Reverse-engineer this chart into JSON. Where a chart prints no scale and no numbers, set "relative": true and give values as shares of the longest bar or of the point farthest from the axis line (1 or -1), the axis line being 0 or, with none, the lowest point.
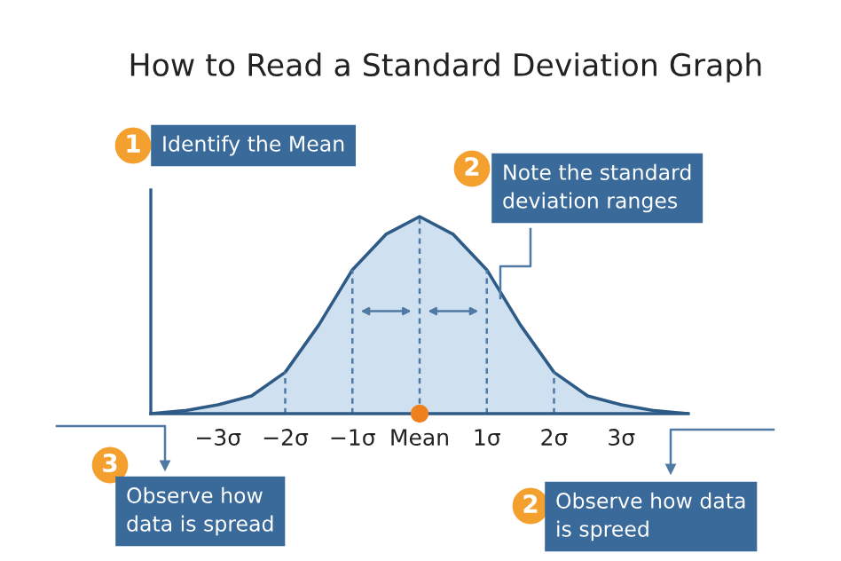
{
  "chart_data": {
    "type": "area",
    "title": "How to Read a Standard Deviation Graph",
    "relative": true,
    "x": [
      -4,
      -3.5,
      -3,
      -2.5,
      -2,
      -1.5,
      -1,
      -0.5,
      0,
      0.5,
      1,
      1.5,
      2,
      2.5,
      3,
      3.5,
      4
    ],
    "xlim": [
      -4,
      4
    ],
    "xticks": [
      {
        "value": -3,
        "label": "−3σ"
      },
      {
        "value": -2,
        "label": "−2σ"
      },
      {
        "value": -1,
        "label": "−1σ"
      },
      {
        "value": 0,
        "label": "Mean"
      },
      {
        "value": 1,
        "label": "1σ"
      },
      {
        "value": 2,
        "label": "2σ"
      },
      {
        "value": 3,
        "label": "3σ"
      }
    ],
    "tick_labels": "x",
    "series": [
      {
        "color": "#2e5a86",
        "values": [
          0,
          0.015,
          0.045,
          0.09,
          0.21,
          0.45,
          0.73,
          0.91,
          1,
          0.91,
          0.73,
          0.45,
          0.21,
          0.09,
          0.045,
          0.015,
          0
        ]
      },
      {
        "type": "scatter",
        "color": "#f07f1e",
        "x": [
          0
        ],
        "values": [
          0
        ]
      }
    ],
    "ref_lines": [
      {
        "axis": "x",
        "value": -2,
        "line_style": "dashed"
      },
      {
        "axis": "x",
        "value": -1,
        "line_style": "dashed"
      },
      {
        "axis": "x",
        "value": 0,
        "line_style": "dashed"
      },
      {
        "axis": "x",
        "value": 1,
        "line_style": "dashed"
      },
      {
        "axis": "x",
        "value": 2,
        "line_style": "dashed"
      }
    ],
    "annotations": [
      "1",
      "Identify the Mean",
      "2",
      "Note the standard\ndeviation ranges",
      "3",
      "Observe how\ndata is spread",
      "2",
      "Observe how data\nis spreed"
    ],
    "grid": false,
    "legend": false
  }
}
